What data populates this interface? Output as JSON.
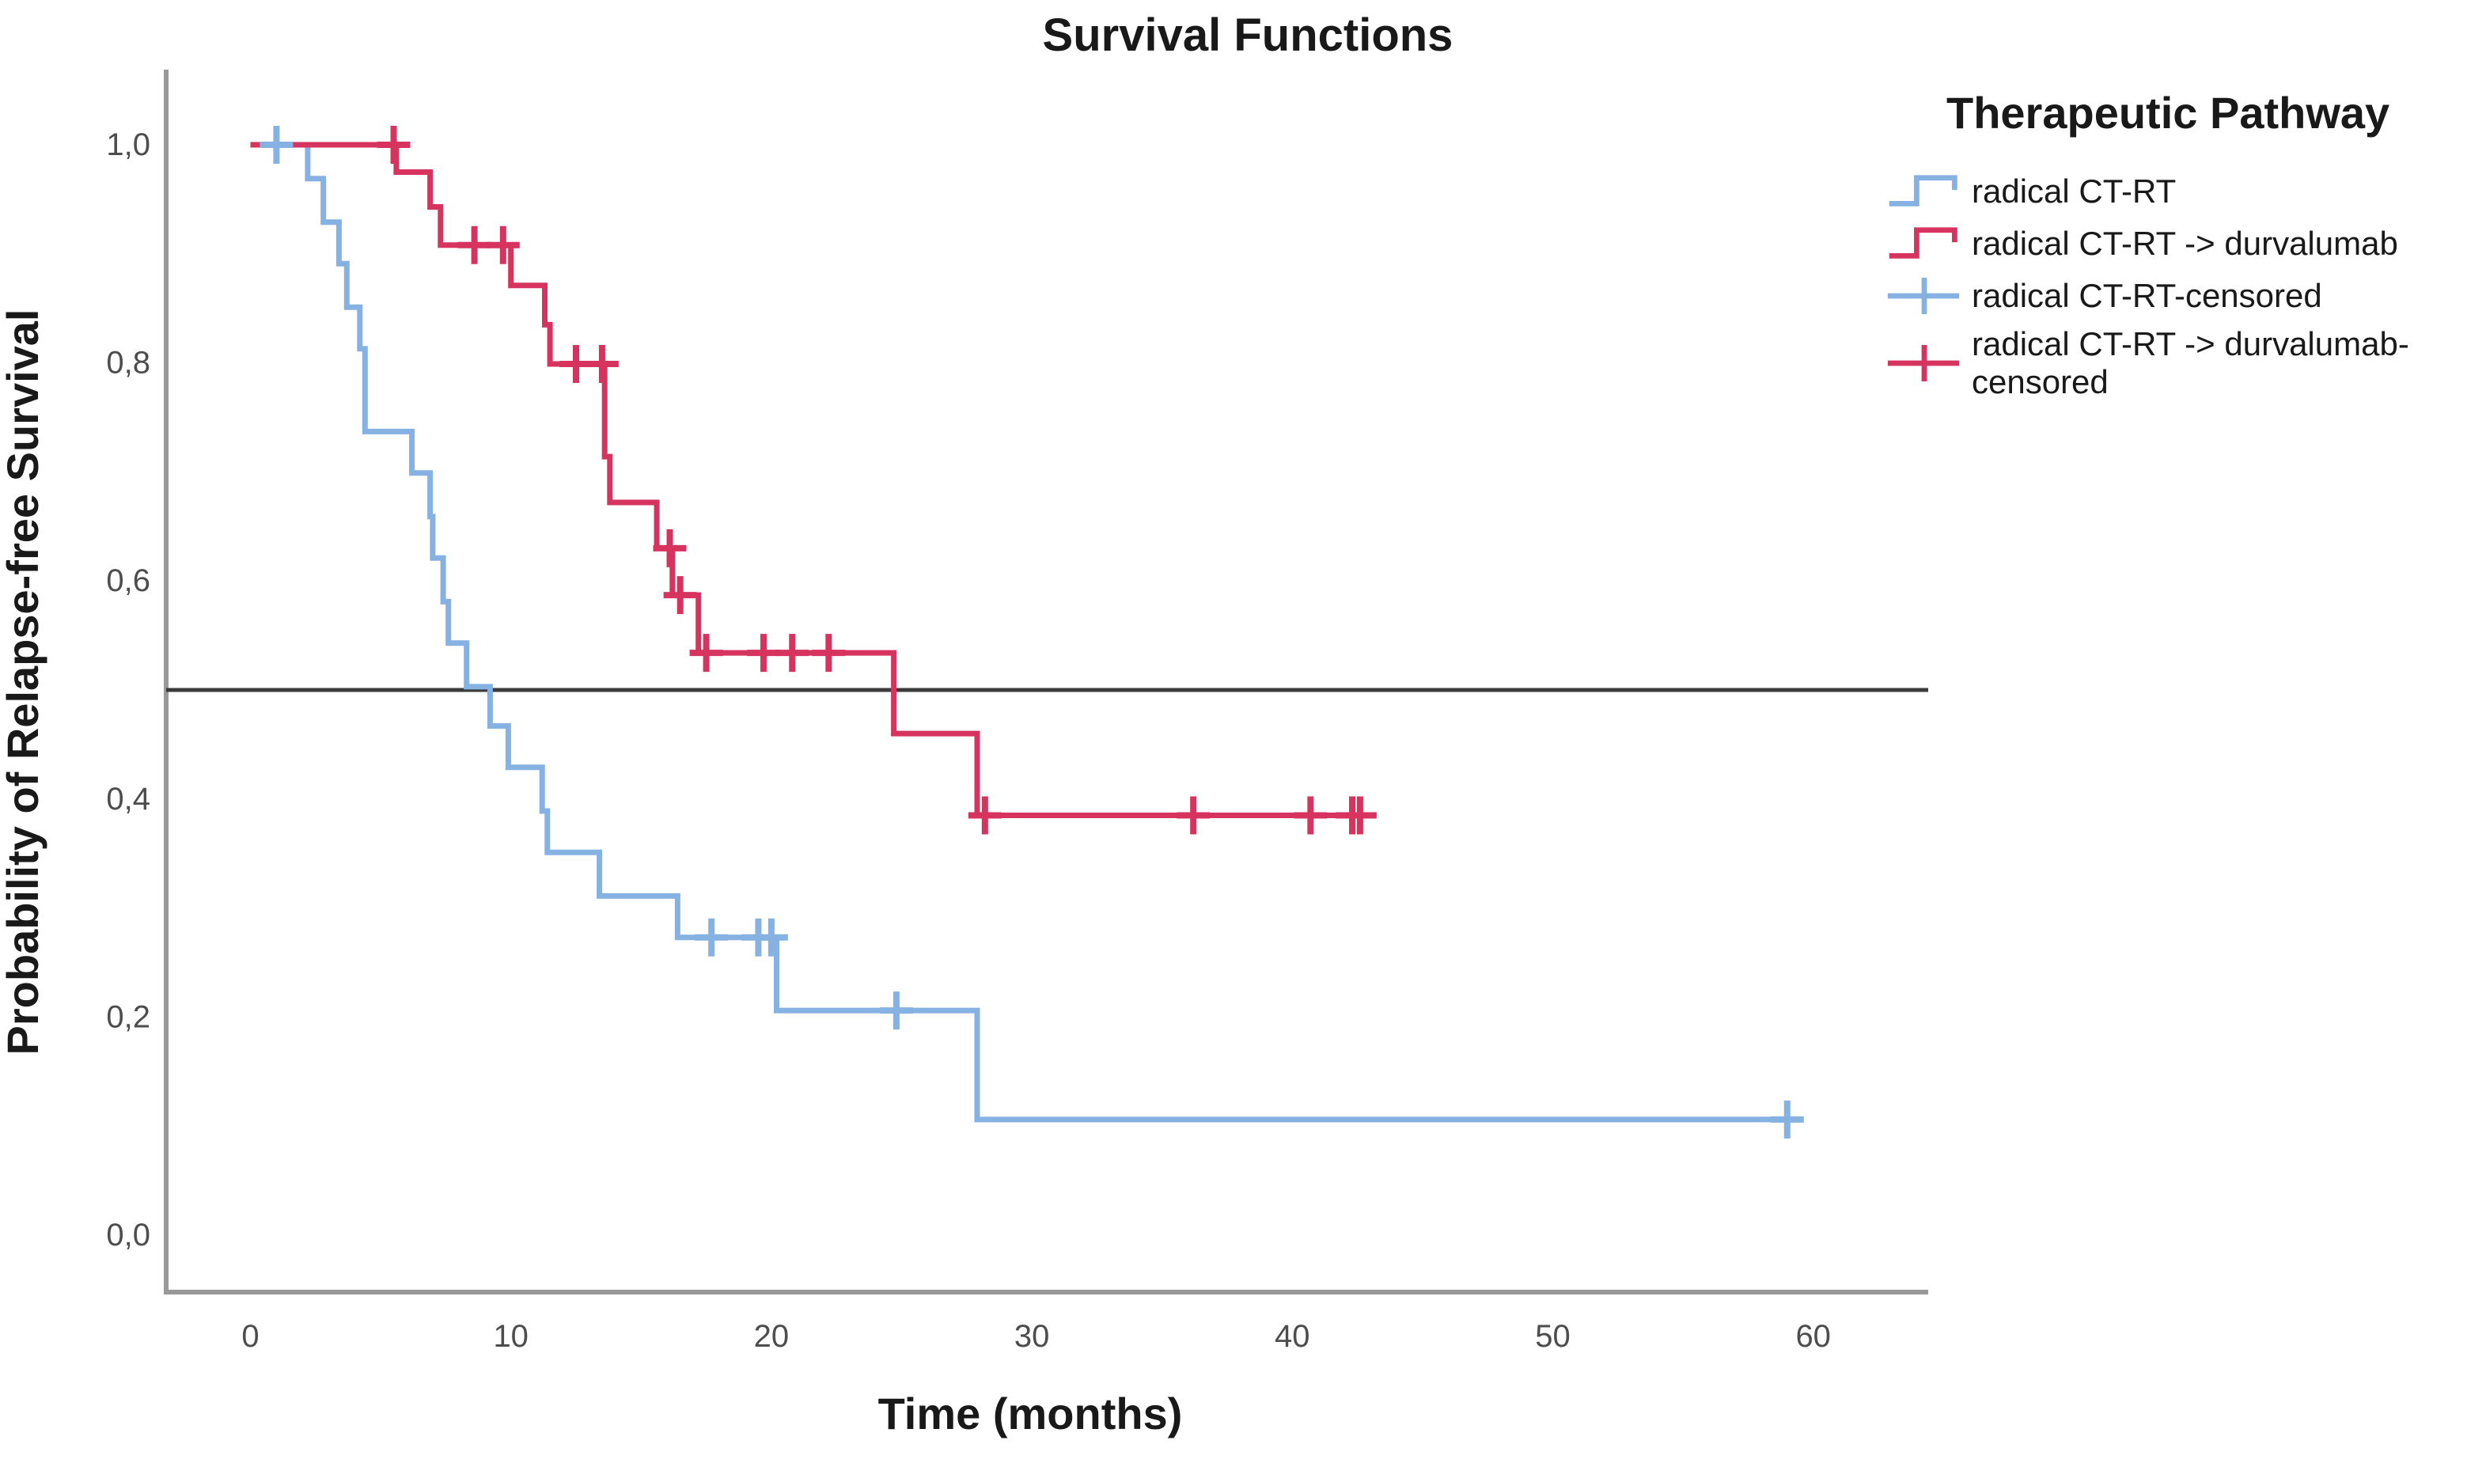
{
  "title": "Survival Functions",
  "axes": {
    "x_label": "Time (months)",
    "y_label": "Probability of Relapse-free Survival",
    "x_ticks": [
      {
        "value": 0,
        "label": "0"
      },
      {
        "value": 10,
        "label": "10"
      },
      {
        "value": 20,
        "label": "20"
      },
      {
        "value": 30,
        "label": "30"
      },
      {
        "value": 40,
        "label": "40"
      },
      {
        "value": 50,
        "label": "50"
      },
      {
        "value": 60,
        "label": "60"
      }
    ],
    "y_ticks": [
      {
        "value": 0.0,
        "label": "0,0"
      },
      {
        "value": 0.2,
        "label": "0,2"
      },
      {
        "value": 0.4,
        "label": "0,4"
      },
      {
        "value": 0.6,
        "label": "0,6"
      },
      {
        "value": 0.8,
        "label": "0,8"
      },
      {
        "value": 1.0,
        "label": "1,0"
      }
    ]
  },
  "reference_line": {
    "value": 0.5,
    "color": "#3b3b3b"
  },
  "legend": {
    "title": "Therapeutic Pathway",
    "items": [
      {
        "label": "radical CT-RT",
        "type": "step",
        "color": "#85B1E3"
      },
      {
        "label": "radical CT-RT -> durvalumab",
        "type": "step",
        "color": "#D6345E"
      },
      {
        "label": "radical CT-RT-censored",
        "type": "censor",
        "color": "#85B1E3"
      },
      {
        "label": "radical CT-RT -> durvalumab-censored",
        "type": "censor",
        "color": "#D6345E"
      }
    ]
  },
  "chart_data": {
    "type": "line",
    "subtype": "kaplan_meier_step",
    "title": "Survival Functions",
    "xlabel": "Time (months)",
    "ylabel": "Probability of Relapse-free Survival",
    "xlim": [
      -3.3,
      64.4
    ],
    "ylim": [
      -0.05,
      1.07
    ],
    "x_axis_ticks": [
      0,
      10,
      20,
      30,
      40,
      50,
      60
    ],
    "y_axis_ticks": [
      0.0,
      0.2,
      0.4,
      0.6,
      0.8,
      1.0
    ],
    "grid": false,
    "legend_position": "right",
    "reference_line_y": 0.5,
    "series": [
      {
        "name": "radical CT-RT",
        "color": "#85B1E3",
        "steps": [
          [
            0,
            1.0
          ],
          [
            2.2,
            0.969
          ],
          [
            2.8,
            0.929
          ],
          [
            3.4,
            0.891
          ],
          [
            3.7,
            0.851
          ],
          [
            4.2,
            0.813
          ],
          [
            4.4,
            0.737
          ],
          [
            6.2,
            0.699
          ],
          [
            6.9,
            0.659
          ],
          [
            7.0,
            0.621
          ],
          [
            7.4,
            0.581
          ],
          [
            7.6,
            0.543
          ],
          [
            8.3,
            0.503
          ],
          [
            9.2,
            0.467
          ],
          [
            9.9,
            0.429
          ],
          [
            11.2,
            0.389
          ],
          [
            11.4,
            0.351
          ],
          [
            13.4,
            0.311
          ],
          [
            16.4,
            0.273
          ],
          [
            20.2,
            0.206
          ],
          [
            27.9,
            0.106
          ]
        ],
        "end_time": 59.4,
        "censored": [
          [
            1.0,
            1.0
          ],
          [
            17.7,
            0.273
          ],
          [
            19.5,
            0.273
          ],
          [
            20.0,
            0.273
          ],
          [
            24.8,
            0.206
          ],
          [
            59.0,
            0.106
          ]
        ]
      },
      {
        "name": "radical CT-RT -> durvalumab",
        "color": "#D6345E",
        "steps": [
          [
            0,
            1.0
          ],
          [
            5.6,
            0.975
          ],
          [
            6.9,
            0.943
          ],
          [
            7.3,
            0.908
          ],
          [
            10.0,
            0.871
          ],
          [
            11.3,
            0.835
          ],
          [
            11.5,
            0.799
          ],
          [
            13.6,
            0.714
          ],
          [
            13.8,
            0.672
          ],
          [
            15.6,
            0.63
          ],
          [
            16.2,
            0.587
          ],
          [
            17.2,
            0.534
          ],
          [
            24.7,
            0.46
          ],
          [
            27.9,
            0.385
          ]
        ],
        "end_time": 43.2,
        "censored": [
          [
            5.5,
            1.0
          ],
          [
            8.6,
            0.908
          ],
          [
            9.7,
            0.908
          ],
          [
            12.5,
            0.799
          ],
          [
            13.5,
            0.799
          ],
          [
            16.1,
            0.63
          ],
          [
            16.5,
            0.587
          ],
          [
            17.5,
            0.534
          ],
          [
            19.7,
            0.534
          ],
          [
            20.8,
            0.534
          ],
          [
            22.2,
            0.534
          ],
          [
            28.2,
            0.385
          ],
          [
            36.2,
            0.385
          ],
          [
            40.7,
            0.385
          ],
          [
            42.3,
            0.385
          ],
          [
            42.6,
            0.385
          ]
        ]
      }
    ]
  }
}
